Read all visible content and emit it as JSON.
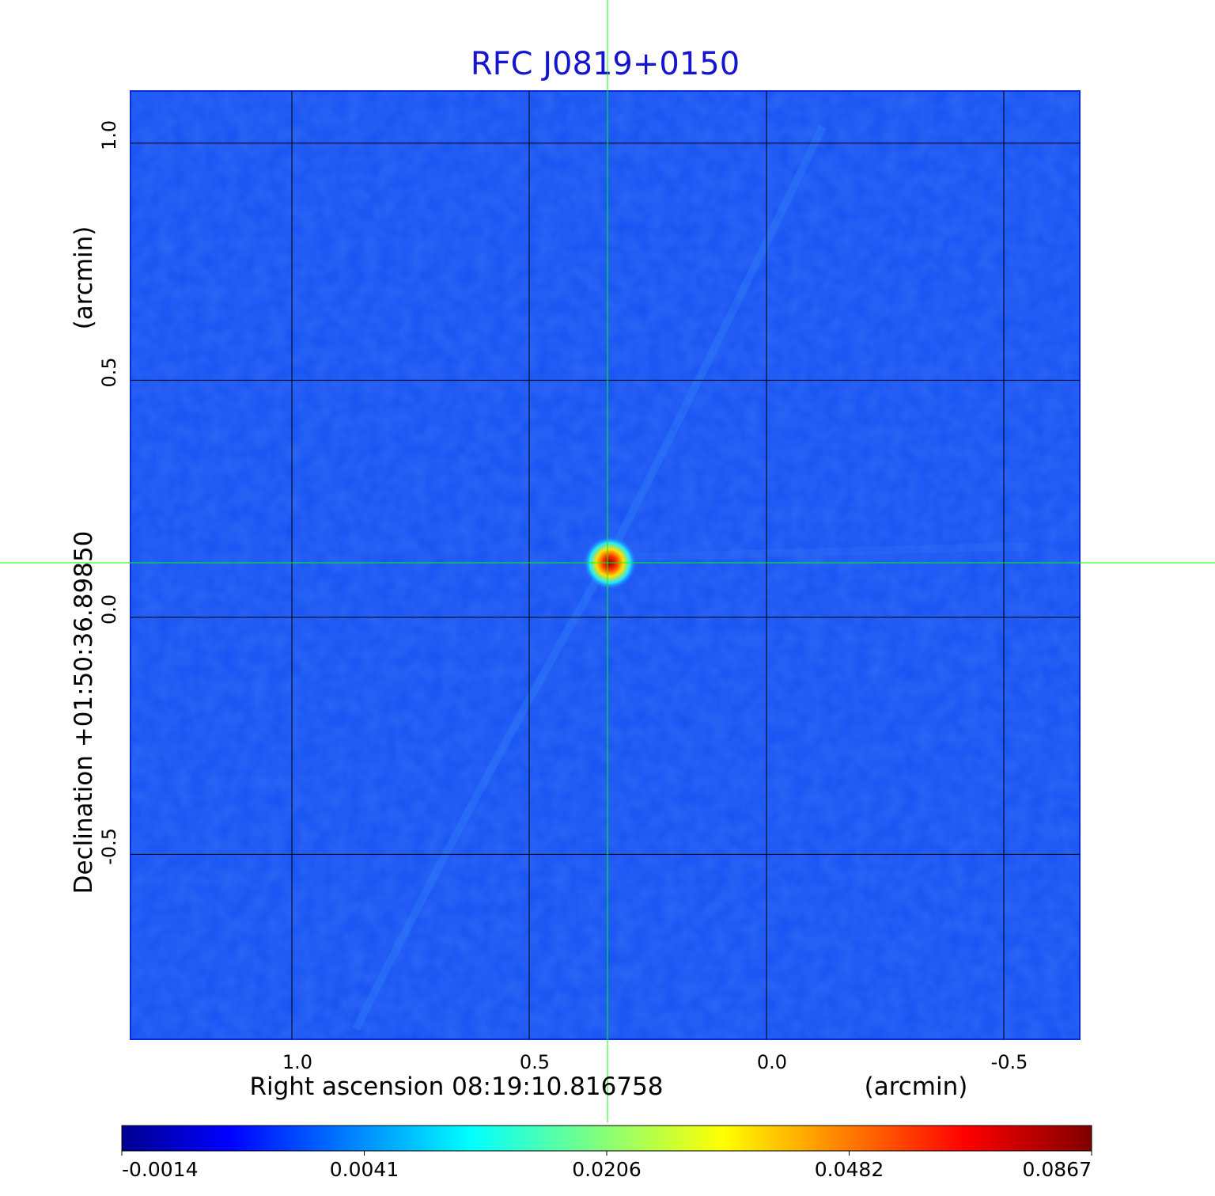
{
  "chart_data": {
    "type": "heatmap",
    "title": "RFC J0819+0150",
    "xlabel": "Right ascension  08:19:10.816758",
    "xlabel_unit": "(arcmin)",
    "ylabel": "Declination  +01:50:36.89850",
    "ylabel_unit": "(arcmin)",
    "xlim": [
      1.34,
      -0.66
    ],
    "ylim": [
      -0.89,
      1.11
    ],
    "x_ticks": [
      1.0,
      0.5,
      0.0,
      -0.5
    ],
    "x_tick_labels": [
      "1.0",
      "0.5",
      "0.0",
      "-0.5"
    ],
    "y_ticks": [
      1.0,
      0.5,
      0.0,
      -0.5
    ],
    "y_tick_labels": [
      "1.0",
      "0.5",
      "0.0",
      "-0.5"
    ],
    "grid": true,
    "crosshair": {
      "x": 0.335,
      "y": 0.115,
      "color": "#00ff00"
    },
    "peak": {
      "x": 0.33,
      "y": 0.115
    },
    "colormap": "jet",
    "colorbar": {
      "placement": "bottom",
      "tick_labels": [
        "-0.0014",
        "0.0041",
        "0.0206",
        "0.0482",
        "0.0867"
      ]
    }
  }
}
